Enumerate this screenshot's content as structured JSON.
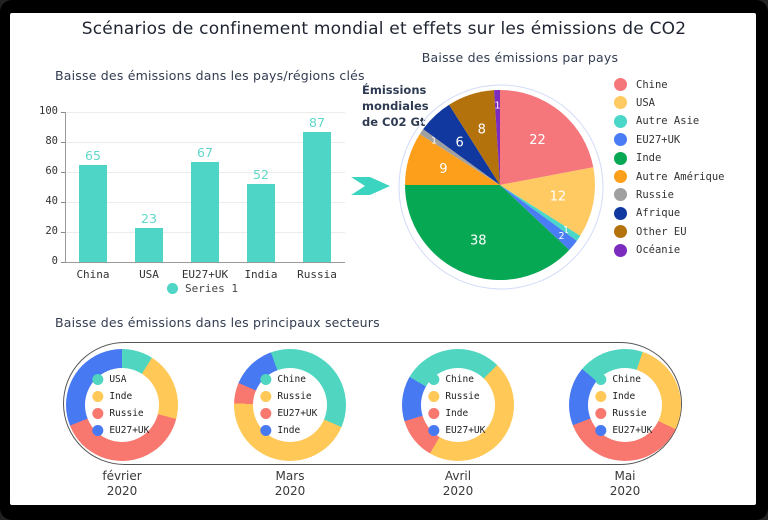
{
  "page_title": "Scénarios de confinement mondial et effets sur les émissions de CO2",
  "colors": {
    "accent_arrow": "#3BD4C0",
    "bar": "#4ED5C5",
    "bar_value_label": "#5fd8c9",
    "grid": "#ececec",
    "stadium_border": "#555555"
  },
  "chart_data": [
    {
      "type": "bar",
      "title": "Baisse des émissions dans les pays/régions clés",
      "categories": [
        "China",
        "USA",
        "EU27+UK",
        "India",
        "Russia"
      ],
      "values": [
        65,
        23,
        67,
        52,
        87
      ],
      "ylim": [
        0,
        100
      ],
      "yticks": [
        0,
        20,
        40,
        60,
        80,
        100
      ],
      "legend": [
        "Series 1"
      ],
      "bar_color": "#4ED5C5",
      "grid": "on",
      "legend_position": "bottom"
    },
    {
      "type": "pie",
      "title": "Baisse des émissions par pays",
      "annotation_lines": [
        "Émissions",
        "mondiales",
        "de C02 Gt"
      ],
      "legend_position": "right",
      "slices": [
        {
          "label": "Chine",
          "value": 22,
          "color": "#F5777B"
        },
        {
          "label": "USA",
          "value": 12,
          "color": "#FFCA61"
        },
        {
          "label": "Autre Asie",
          "value": 1,
          "color": "#4AD7C8"
        },
        {
          "label": "EU27+UK",
          "value": 2,
          "color": "#4A7CF5"
        },
        {
          "label": "Inde",
          "value": 38,
          "color": "#07A854"
        },
        {
          "label": "Autre Amérique",
          "value": 9,
          "color": "#FD9F1B"
        },
        {
          "label": "Russie",
          "value": 1,
          "color": "#A0A0A0"
        },
        {
          "label": "Afrique",
          "value": 6,
          "color": "#10389E"
        },
        {
          "label": "Other EU",
          "value": 8,
          "color": "#B4720D"
        },
        {
          "label": "Océanie",
          "value": 1,
          "color": "#7B2CBF"
        }
      ]
    },
    {
      "type": "donut-series",
      "title": "Baisse des émissions dans les principaux secteurs",
      "palette": [
        "#4FD5C0",
        "#FFC857",
        "#F8776F",
        "#4679F2"
      ],
      "donuts": [
        {
          "month": "février",
          "year": "2020",
          "start_deg": 0,
          "segments": [
            {
              "label": "USA",
              "value": 9
            },
            {
              "label": "Inde",
              "value": 20
            },
            {
              "label": "Russie",
              "value": 40
            },
            {
              "label": "EU27+UK",
              "value": 31
            }
          ]
        },
        {
          "month": "Mars",
          "year": "2020",
          "start_deg": -20,
          "segments": [
            {
              "label": "Chine",
              "value": 37
            },
            {
              "label": "Russie",
              "value": 44
            },
            {
              "label": "EU27+UK",
              "value": 6
            },
            {
              "label": "Inde",
              "value": 13
            }
          ]
        },
        {
          "month": "Avril",
          "year": "2020",
          "start_deg": -60,
          "segments": [
            {
              "label": "Chine",
              "value": 29
            },
            {
              "label": "Russie",
              "value": 46
            },
            {
              "label": "Inde",
              "value": 12
            },
            {
              "label": "EU27+UK",
              "value": 13
            }
          ]
        },
        {
          "month": "Mai",
          "year": "2020",
          "start_deg": -50,
          "segments": [
            {
              "label": "Chine",
              "value": 19
            },
            {
              "label": "Inde",
              "value": 27
            },
            {
              "label": "Russie",
              "value": 37
            },
            {
              "label": "EU27+UK",
              "value": 17
            }
          ]
        }
      ]
    }
  ]
}
